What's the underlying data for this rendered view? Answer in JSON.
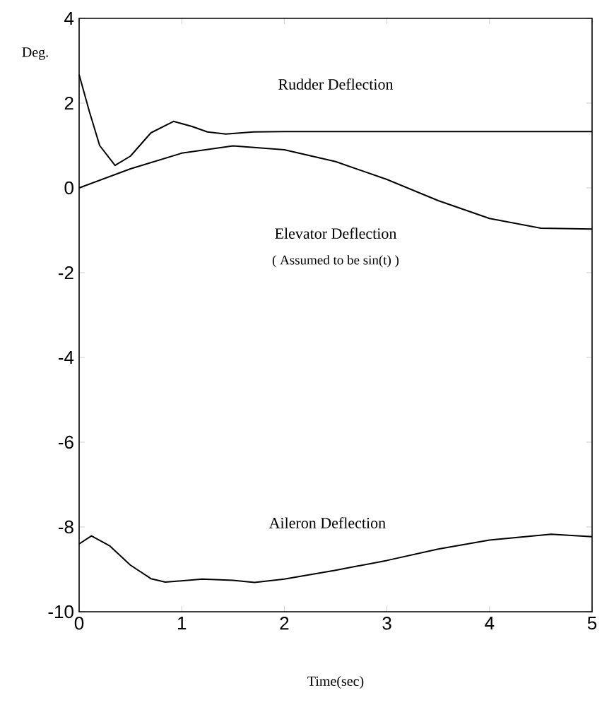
{
  "chart_data": {
    "type": "line",
    "xlabel": "Time(sec)",
    "ylabel": "Deg.",
    "xlim": [
      0,
      5
    ],
    "ylim": [
      -10,
      4
    ],
    "xticks": [
      0,
      1,
      2,
      3,
      4,
      5
    ],
    "yticks": [
      -10,
      -8,
      -6,
      -4,
      -2,
      0,
      2,
      4
    ],
    "grid": false,
    "legend": false,
    "marker": "none",
    "line_style": "solid",
    "annotations": [
      "( Assumed to be sin(t) )"
    ],
    "series": [
      {
        "name": "Rudder Deflection",
        "color": "#000000",
        "x": [
          0,
          0.1,
          0.2,
          0.35,
          0.5,
          0.7,
          0.92,
          1.1,
          1.25,
          1.43,
          1.7,
          2,
          3,
          4,
          5
        ],
        "values": [
          2.67,
          1.8,
          1.0,
          0.53,
          0.75,
          1.3,
          1.57,
          1.45,
          1.32,
          1.27,
          1.32,
          1.33,
          1.33,
          1.33,
          1.33
        ]
      },
      {
        "name": "Elevator Deflection",
        "color": "#000000",
        "x": [
          0,
          0.5,
          1,
          1.5,
          2,
          2.5,
          3,
          3.5,
          4,
          4.5,
          5
        ],
        "values": [
          0,
          0.45,
          0.82,
          0.99,
          0.9,
          0.62,
          0.2,
          -0.3,
          -0.72,
          -0.95,
          -0.97
        ]
      },
      {
        "name": "Aileron Deflection",
        "color": "#000000",
        "x": [
          0,
          0.12,
          0.3,
          0.5,
          0.7,
          0.84,
          1.2,
          1.5,
          1.71,
          2,
          2.5,
          3,
          3.5,
          4,
          4.6,
          5
        ],
        "values": [
          -8.4,
          -8.21,
          -8.45,
          -8.9,
          -9.22,
          -9.3,
          -9.23,
          -9.26,
          -9.31,
          -9.23,
          -9.02,
          -8.79,
          -8.52,
          -8.31,
          -8.17,
          -8.23
        ]
      }
    ]
  }
}
